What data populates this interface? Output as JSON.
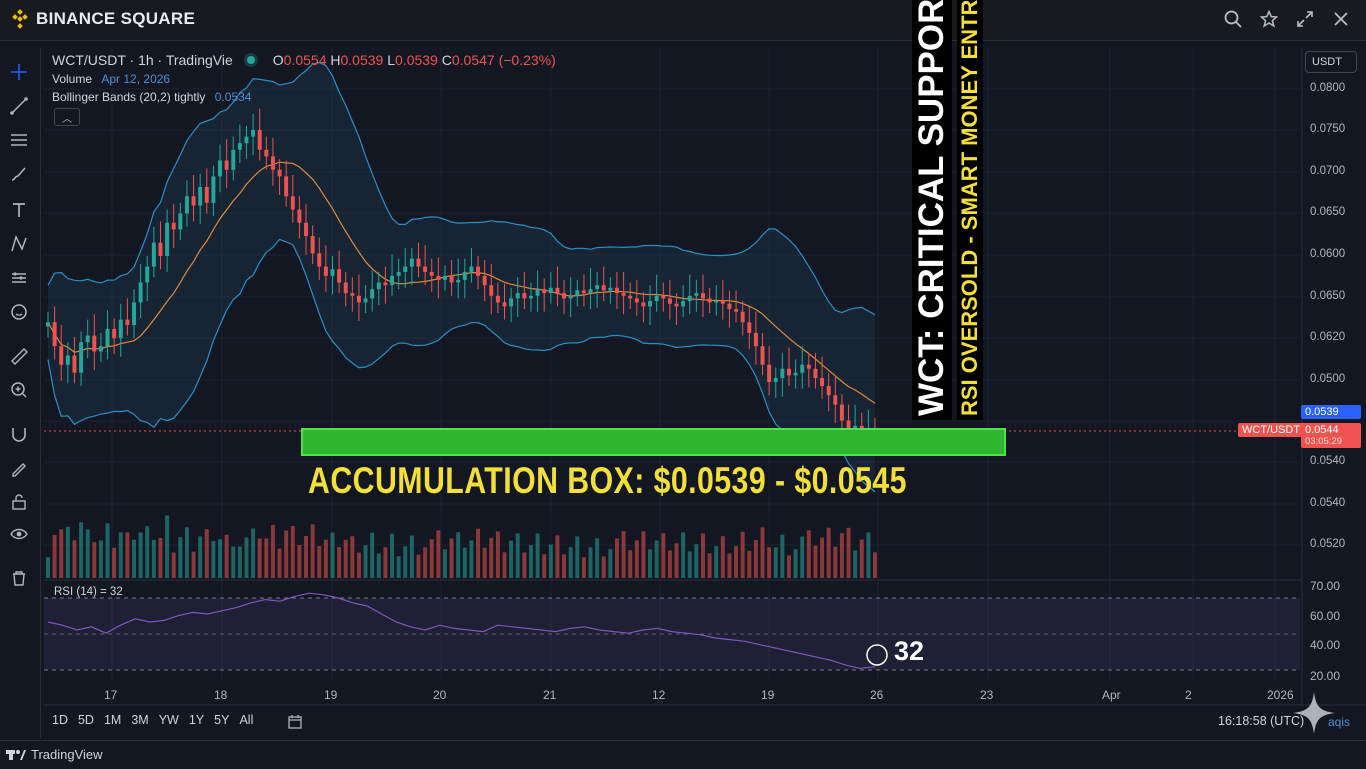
{
  "header": {
    "brand": "BINANCE SQUARE",
    "icons": [
      "search-icon",
      "star-icon",
      "expand-icon",
      "close-icon"
    ]
  },
  "legend": {
    "symbol": "WCT/USDT · 1h · TradingVie",
    "o_label": "O",
    "o": "0.0554",
    "h_label": "H",
    "h": "0.0539",
    "l_label": "L",
    "l": "0.0539",
    "c_label": "C",
    "c": "0.0547 (−0.23%)",
    "volume_label": "Volume",
    "volume_date": "Apr 12, 2026",
    "bb_label": "Bollinger Bands (20,2) tightly",
    "bb_value": "0.0534"
  },
  "currency_button": "USDT",
  "price_axis": [
    "0.0800",
    "0.0750",
    "0.0700",
    "0.0650",
    "0.0600",
    "0.0650",
    "0.0620",
    "0.0500",
    "0.0540",
    "0.0540",
    "0.0520"
  ],
  "price_tags": {
    "blue": "0.0539",
    "red": "0.0544",
    "countdown": "03:05:29",
    "symbol_tag": "WCT/USDT"
  },
  "rsi": {
    "label": "RSI (14) = 32",
    "axis": [
      "70.00",
      "60.00",
      "40.00",
      "20.00"
    ],
    "callout": "32"
  },
  "annotations": {
    "accumulation": "ACCUMULATION BOX: $0.0539 - $0.0545",
    "vertical_title": "WCT: CRITICAL SUPPORT",
    "vertical_subtitle": "RSI OVERSOLD - SMART MONEY ENTRY"
  },
  "time_axis": [
    "17",
    "18",
    "19",
    "20",
    "21",
    "12",
    "19",
    "26",
    "23",
    "Apr",
    "2",
    "2026"
  ],
  "ranges": [
    "1D",
    "5D",
    "1M",
    "3M",
    "YW",
    "1Y",
    "5Y",
    "All"
  ],
  "clock": "16:18:58 (UTC)",
  "aqis": "aqis",
  "footer": "TradingView",
  "colors": {
    "up": "#26a69a",
    "down": "#ef5350",
    "brand": "#f0b90b",
    "band": "#2a8fc7",
    "basis": "#e08a3c",
    "rsi": "#7e57c2"
  },
  "chart_data": {
    "type": "candlestick",
    "closes": [
      0.063,
      0.0612,
      0.0598,
      0.0605,
      0.0592,
      0.0615,
      0.062,
      0.0608,
      0.0612,
      0.0625,
      0.0618,
      0.0632,
      0.0628,
      0.0645,
      0.066,
      0.0672,
      0.069,
      0.068,
      0.0705,
      0.07,
      0.0712,
      0.0725,
      0.0718,
      0.0732,
      0.072,
      0.074,
      0.0752,
      0.0745,
      0.076,
      0.0765,
      0.077,
      0.0775,
      0.076,
      0.0755,
      0.0745,
      0.074,
      0.0725,
      0.0715,
      0.0705,
      0.0695,
      0.0682,
      0.0672,
      0.0665,
      0.067,
      0.066,
      0.0652,
      0.065,
      0.0645,
      0.0648,
      0.0655,
      0.066,
      0.0658,
      0.0665,
      0.0668,
      0.0672,
      0.0678,
      0.0672,
      0.0668,
      0.0665,
      0.0662,
      0.0665,
      0.066,
      0.0662,
      0.0668,
      0.0672,
      0.0665,
      0.0658,
      0.065,
      0.0645,
      0.0642,
      0.0648,
      0.0652,
      0.0648,
      0.065,
      0.0655,
      0.0652,
      0.0656,
      0.0652,
      0.0648,
      0.065,
      0.0654,
      0.0652,
      0.0655,
      0.0658,
      0.0654,
      0.0656,
      0.0652,
      0.065,
      0.0648,
      0.0645,
      0.0642,
      0.0646,
      0.065,
      0.0648,
      0.0644,
      0.0642,
      0.0646,
      0.065,
      0.0652,
      0.0648,
      0.0645,
      0.0646,
      0.0644,
      0.064,
      0.0638,
      0.063,
      0.0622,
      0.0612,
      0.0598,
      0.0585,
      0.0588,
      0.0595,
      0.059,
      0.0592,
      0.0598,
      0.0595,
      0.0588,
      0.0582,
      0.0575,
      0.0568,
      0.0556,
      0.0548,
      0.0552,
      0.0546,
      0.055,
      0.0547
    ],
    "rsi": [
      60,
      58,
      55,
      57,
      53,
      58,
      62,
      60,
      61,
      64,
      66,
      65,
      67,
      69,
      72,
      74,
      73,
      76,
      78,
      77,
      75,
      72,
      70,
      65,
      60,
      57,
      55,
      58,
      56,
      55,
      54,
      58,
      57,
      56,
      55,
      54,
      56,
      57,
      55,
      54,
      53,
      55,
      56,
      54,
      53,
      52,
      50,
      49,
      48,
      46,
      44,
      42,
      40,
      38,
      36,
      33,
      31,
      32
    ],
    "rsi_level": 32,
    "support_range": [
      0.0539,
      0.0545
    ]
  }
}
